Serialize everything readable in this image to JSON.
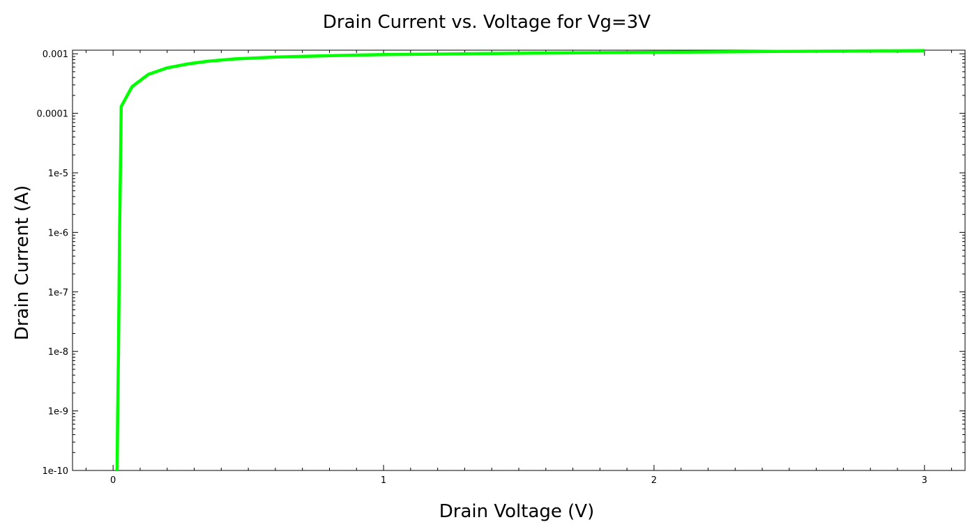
{
  "chart_data": {
    "type": "line",
    "title": "Drain Current vs. Voltage for Vg=3V",
    "xlabel": "Drain Voltage (V)",
    "ylabel": "Drain Current (A)",
    "xlim": [
      -0.15,
      3.15
    ],
    "ylim": [
      1e-10,
      0.00115
    ],
    "yscale": "log",
    "grid": false,
    "x_ticks": [
      0,
      1,
      2,
      3
    ],
    "x_tick_labels": [
      "0",
      "1",
      "2",
      "3"
    ],
    "y_ticks": [
      1e-10,
      1e-09,
      1e-08,
      1e-07,
      1e-06,
      1e-05,
      0.0001,
      0.001
    ],
    "y_tick_labels": [
      "1e-10",
      "1e-9",
      "1e-8",
      "1e-7",
      "1e-6",
      "1e-5",
      "0.0001",
      "0.001"
    ],
    "series": [
      {
        "color": "#00ff00",
        "x": [
          0.015,
          0.017,
          0.02,
          0.022,
          0.024,
          0.027,
          0.03,
          0.07,
          0.13,
          0.2,
          0.28,
          0.35,
          0.45,
          0.6,
          0.8,
          1.0,
          1.3,
          1.6,
          2.0,
          2.5,
          3.0
        ],
        "y": [
          1e-10,
          1e-09,
          1e-08,
          1e-07,
          1e-06,
          1e-05,
          0.00013,
          0.00028,
          0.00045,
          0.00058,
          0.00068,
          0.00075,
          0.00082,
          0.00088,
          0.00093,
          0.00097,
          0.001,
          0.00103,
          0.00106,
          0.0011,
          0.00113
        ]
      }
    ]
  }
}
